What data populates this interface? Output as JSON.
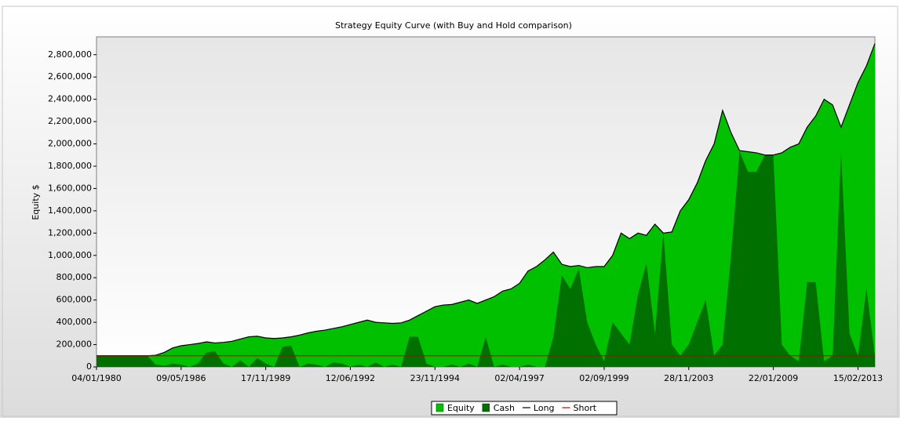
{
  "chart_data": {
    "type": "area",
    "title": "Strategy Equity Curve (with Buy and Hold comparison)",
    "y_label": "Equity $",
    "categories": [
      "04/01/1980",
      null,
      null,
      null,
      null,
      null,
      null,
      null,
      null,
      null,
      "09/05/1986",
      null,
      null,
      null,
      null,
      null,
      null,
      null,
      null,
      null,
      "17/11/1989",
      null,
      null,
      null,
      null,
      null,
      null,
      null,
      null,
      null,
      "12/06/1992",
      null,
      null,
      null,
      null,
      null,
      null,
      null,
      null,
      null,
      "23/11/1994",
      null,
      null,
      null,
      null,
      null,
      null,
      null,
      null,
      null,
      "02/04/1997",
      null,
      null,
      null,
      null,
      null,
      null,
      null,
      null,
      null,
      "02/09/1999",
      null,
      null,
      null,
      null,
      null,
      null,
      null,
      null,
      null,
      "28/11/2003",
      null,
      null,
      null,
      null,
      null,
      null,
      null,
      null,
      null,
      "22/01/2009",
      null,
      null,
      null,
      null,
      null,
      null,
      null,
      null,
      null,
      "15/02/2013",
      null,
      null
    ],
    "series": [
      {
        "name": "Equity",
        "kind": "area",
        "color": "#00c000",
        "values": [
          100000,
          100000,
          100000,
          100000,
          100000,
          100000,
          100000,
          105000,
          130000,
          170000,
          190000,
          200000,
          210000,
          225000,
          215000,
          220000,
          230000,
          250000,
          270000,
          275000,
          260000,
          255000,
          260000,
          270000,
          285000,
          305000,
          320000,
          330000,
          345000,
          360000,
          380000,
          400000,
          420000,
          400000,
          395000,
          390000,
          395000,
          420000,
          460000,
          500000,
          540000,
          555000,
          560000,
          580000,
          600000,
          570000,
          600000,
          630000,
          680000,
          700000,
          750000,
          860000,
          900000,
          960000,
          1030000,
          920000,
          900000,
          910000,
          890000,
          900000,
          900000,
          1000000,
          1200000,
          1150000,
          1200000,
          1180000,
          1280000,
          1200000,
          1210000,
          1400000,
          1500000,
          1650000,
          1850000,
          2000000,
          2300000,
          2100000,
          1940000,
          1930000,
          1920000,
          1900000,
          1900000,
          1920000,
          1970000,
          2000000,
          2150000,
          2250000,
          2400000,
          2350000,
          2150000,
          2350000,
          2550000,
          2700000,
          2900000
        ]
      },
      {
        "name": "Cash",
        "kind": "area",
        "color": "#007000",
        "values": [
          100000,
          100000,
          100000,
          100000,
          100000,
          100000,
          100000,
          20000,
          10000,
          30000,
          20000,
          0,
          30000,
          130000,
          140000,
          30000,
          0,
          60000,
          0,
          80000,
          30000,
          0,
          180000,
          190000,
          0,
          30000,
          20000,
          0,
          40000,
          30000,
          0,
          20000,
          0,
          40000,
          0,
          20000,
          0,
          270000,
          270000,
          30000,
          0,
          0,
          20000,
          0,
          30000,
          0,
          270000,
          0,
          20000,
          0,
          0,
          20000,
          0,
          0,
          270000,
          820000,
          700000,
          880000,
          400000,
          200000,
          50000,
          400000,
          300000,
          200000,
          650000,
          930000,
          300000,
          1200000,
          200000,
          100000,
          200000,
          400000,
          600000,
          100000,
          200000,
          1000000,
          1930000,
          1750000,
          1750000,
          1900000,
          1900000,
          200000,
          100000,
          50000,
          760000,
          760000,
          50000,
          100000,
          1930000,
          300000,
          100000,
          700000,
          100000
        ]
      },
      {
        "name": "Long",
        "kind": "line",
        "color": "#000000",
        "values": [
          100000,
          100000,
          100000,
          100000,
          100000,
          100000,
          100000,
          105000,
          130000,
          170000,
          190000,
          200000,
          210000,
          225000,
          215000,
          220000,
          230000,
          250000,
          270000,
          275000,
          260000,
          255000,
          260000,
          270000,
          285000,
          305000,
          320000,
          330000,
          345000,
          360000,
          380000,
          400000,
          420000,
          400000,
          395000,
          390000,
          395000,
          420000,
          460000,
          500000,
          540000,
          555000,
          560000,
          580000,
          600000,
          570000,
          600000,
          630000,
          680000,
          700000,
          750000,
          860000,
          900000,
          960000,
          1030000,
          920000,
          900000,
          910000,
          890000,
          900000,
          900000,
          1000000,
          1200000,
          1150000,
          1200000,
          1180000,
          1280000,
          1200000,
          1210000,
          1400000,
          1500000,
          1650000,
          1850000,
          2000000,
          2300000,
          2100000,
          1940000,
          1930000,
          1920000,
          1900000,
          1900000,
          1920000,
          1970000,
          2000000,
          2150000,
          2250000,
          2400000,
          2350000,
          2150000,
          2350000,
          2550000,
          2700000,
          2900000
        ]
      },
      {
        "name": "Short",
        "kind": "line",
        "color": "#c00000",
        "values": [
          100000,
          100000,
          100000,
          100000,
          100000,
          100000,
          100000,
          100000,
          100000,
          100000,
          100000,
          100000,
          100000,
          100000,
          100000,
          100000,
          100000,
          100000,
          100000,
          100000,
          100000,
          100000,
          100000,
          100000,
          100000,
          100000,
          100000,
          100000,
          100000,
          100000,
          100000,
          100000,
          100000,
          100000,
          100000,
          100000,
          100000,
          100000,
          100000,
          100000,
          100000,
          100000,
          100000,
          100000,
          100000,
          100000,
          100000,
          100000,
          100000,
          100000,
          100000,
          100000,
          100000,
          100000,
          100000,
          100000,
          100000,
          100000,
          100000,
          100000,
          100000,
          100000,
          100000,
          100000,
          100000,
          100000,
          100000,
          100000,
          100000,
          100000,
          100000,
          100000,
          100000,
          100000,
          100000,
          100000,
          100000,
          100000,
          100000,
          100000,
          100000,
          100000,
          100000,
          100000,
          100000,
          100000,
          100000,
          100000,
          100000,
          100000,
          100000,
          100000,
          100000
        ]
      }
    ],
    "ylim": [
      0,
      2960000
    ],
    "yticks": [
      0,
      {
        "value": 200000,
        "label": "200,000"
      },
      {
        "value": 400000,
        "label": "400,000"
      },
      {
        "value": 600000,
        "label": "600,000"
      },
      {
        "value": 800000,
        "label": "800,000"
      },
      {
        "value": 1000000,
        "label": "1,000,000"
      },
      {
        "value": 1200000,
        "label": "1,200,000"
      },
      {
        "value": 1400000,
        "label": "1,400,000"
      },
      {
        "value": 1600000,
        "label": "1,600,000"
      },
      {
        "value": 1800000,
        "label": "1,800,000"
      },
      {
        "value": 2000000,
        "label": "2,000,000"
      },
      {
        "value": 2200000,
        "label": "2,200,000"
      },
      {
        "value": 2400000,
        "label": "2,400,000"
      },
      {
        "value": 2600000,
        "label": "2,600,000"
      },
      {
        "value": 2800000,
        "label": "2,800,000"
      }
    ],
    "legend": "bottom"
  }
}
